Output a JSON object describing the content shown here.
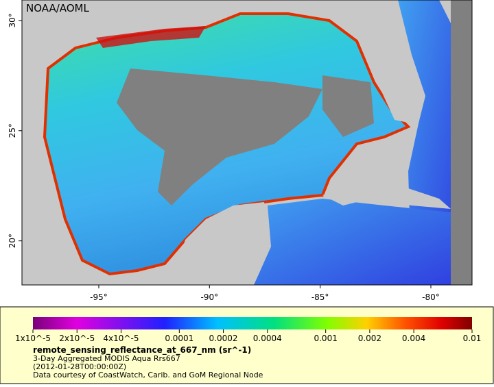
{
  "watermark": "NOAA/AOML",
  "map": {
    "lon_range": [
      -98.47,
      -78.14
    ],
    "lat_range": [
      18.0,
      30.93
    ],
    "lon_ticks": [
      {
        "value": -95,
        "label": "-95°"
      },
      {
        "value": -90,
        "label": "-90°"
      },
      {
        "value": -85,
        "label": "-85°"
      },
      {
        "value": -80,
        "label": "-80°"
      }
    ],
    "lat_ticks": [
      {
        "value": 20,
        "label": "20°"
      },
      {
        "value": 25,
        "label": "25°"
      },
      {
        "value": 30,
        "label": "30°"
      }
    ]
  },
  "colorbar": {
    "scale": "log",
    "range": [
      1e-05,
      0.01
    ],
    "ticks": [
      {
        "value": 1e-05,
        "label": "1x10^-5"
      },
      {
        "value": 2e-05,
        "label": "2x10^-5"
      },
      {
        "value": 4e-05,
        "label": "4x10^-5"
      },
      0.0001,
      0.0002,
      0.0004,
      0.001,
      0.002,
      0.004,
      0.01
    ],
    "title": "remote_sensing_reflectance_at_667_nm (sr^-1)"
  },
  "legend_lines": [
    "3-Day Aggregated MODIS Aqua Rrs667",
    "(2012-01-28T00:00:00Z)",
    "Data courtesy of CoastWatch, Carib. and GoM Regional Node"
  ]
}
